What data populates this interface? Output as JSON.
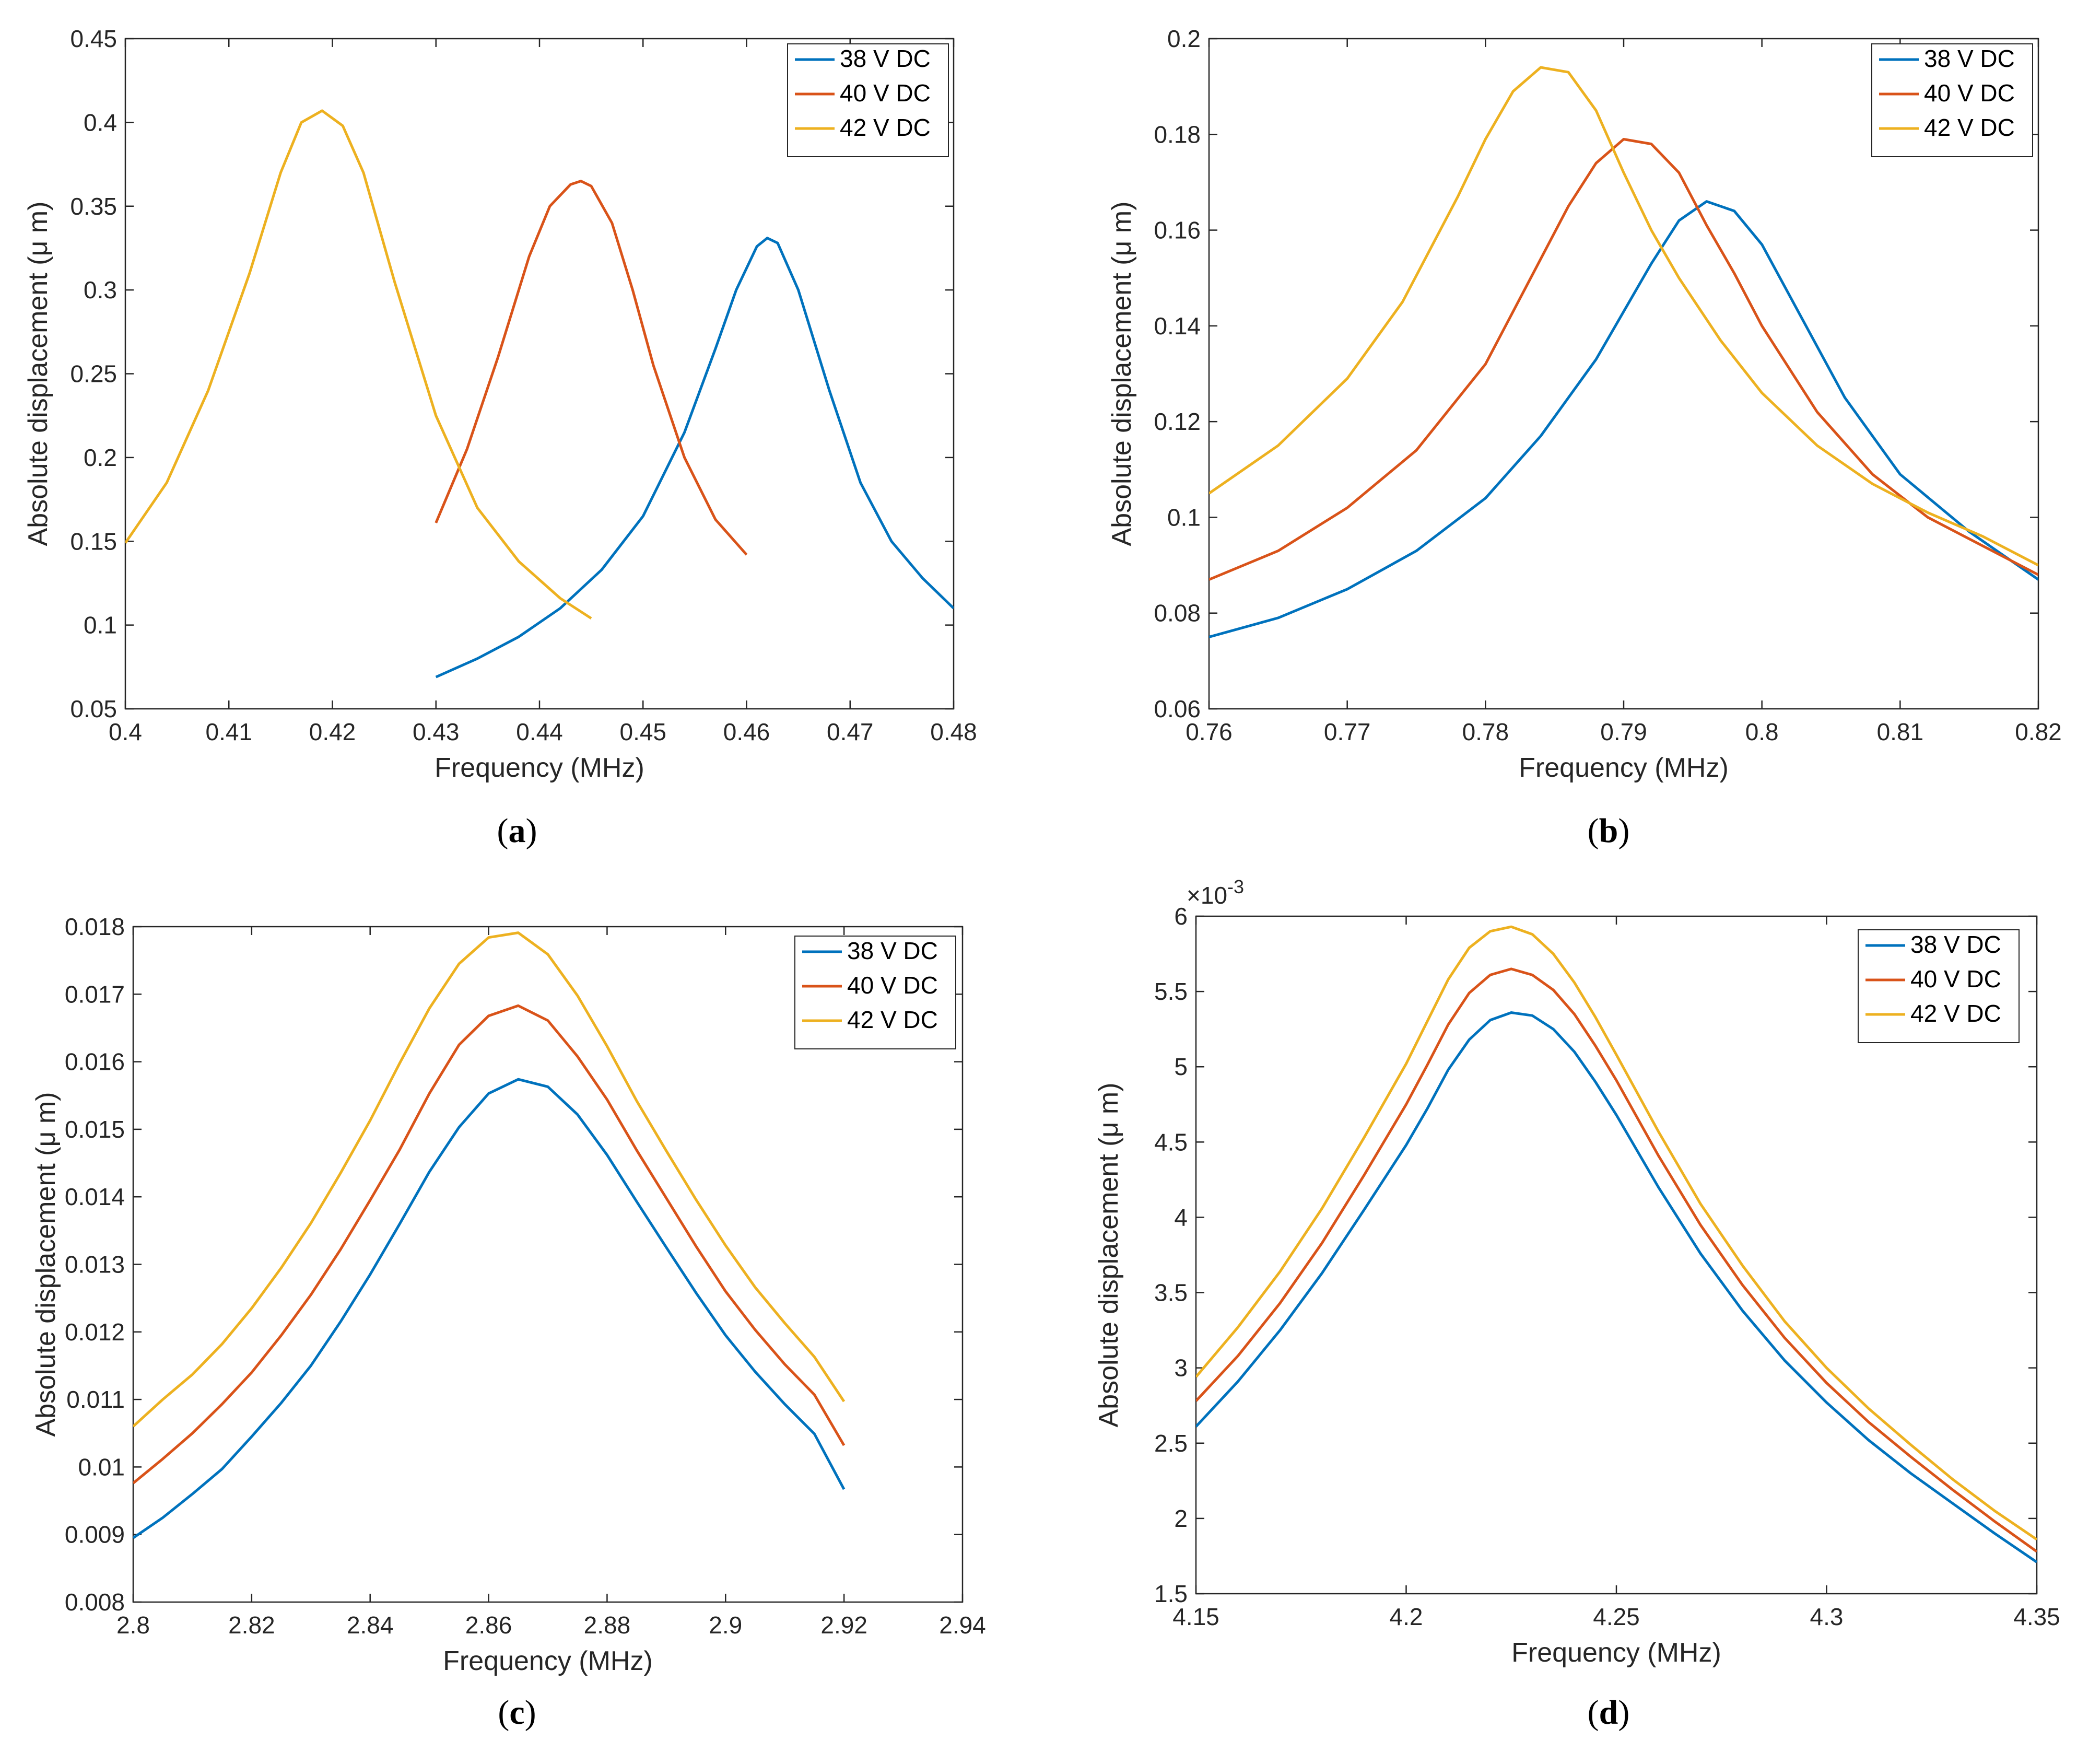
{
  "colors": {
    "s38": "#0072BD",
    "s40": "#D95319",
    "s42": "#EDB120",
    "axis": "#262626"
  },
  "chart_data": [
    {
      "type": "line",
      "caption": "a",
      "xlabel": "Frequency (MHz)",
      "ylabel": "Absolute displacement (μ m)",
      "exponent": "",
      "xlim": [
        0.4,
        0.48
      ],
      "ylim": [
        0.05,
        0.45
      ],
      "xticks": [
        "0.4",
        "0.41",
        "0.42",
        "0.43",
        "0.44",
        "0.45",
        "0.46",
        "0.47",
        "0.48"
      ],
      "yticks": [
        "0.05",
        "0.1",
        "0.15",
        "0.2",
        "0.25",
        "0.3",
        "0.35",
        "0.4",
        "0.45"
      ],
      "legend": [
        "38 V DC",
        "40 V DC",
        "42 V DC"
      ],
      "series": [
        {
          "name": "38 V DC",
          "x": [
            0.43,
            0.434,
            0.438,
            0.442,
            0.446,
            0.45,
            0.454,
            0.457,
            0.459,
            0.461,
            0.462,
            0.463,
            0.465,
            0.468,
            0.471,
            0.474,
            0.477,
            0.48
          ],
          "y": [
            0.069,
            0.08,
            0.093,
            0.11,
            0.133,
            0.165,
            0.215,
            0.265,
            0.3,
            0.326,
            0.331,
            0.328,
            0.3,
            0.24,
            0.185,
            0.15,
            0.128,
            0.11
          ]
        },
        {
          "name": "40 V DC",
          "x": [
            0.43,
            0.433,
            0.436,
            0.439,
            0.441,
            0.443,
            0.444,
            0.445,
            0.447,
            0.449,
            0.451,
            0.454,
            0.457,
            0.46
          ],
          "y": [
            0.161,
            0.205,
            0.26,
            0.32,
            0.35,
            0.363,
            0.365,
            0.362,
            0.34,
            0.3,
            0.255,
            0.2,
            0.163,
            0.142
          ]
        },
        {
          "name": "42 V DC",
          "x": [
            0.4,
            0.404,
            0.408,
            0.412,
            0.415,
            0.417,
            0.419,
            0.421,
            0.423,
            0.426,
            0.43,
            0.434,
            0.438,
            0.442,
            0.445
          ],
          "y": [
            0.149,
            0.185,
            0.24,
            0.31,
            0.37,
            0.4,
            0.407,
            0.398,
            0.37,
            0.305,
            0.225,
            0.17,
            0.138,
            0.116,
            0.104
          ]
        }
      ]
    },
    {
      "type": "line",
      "caption": "b",
      "xlabel": "Frequency (MHz)",
      "ylabel": "Absolute displacement (μ m)",
      "exponent": "",
      "xlim": [
        0.76,
        0.82
      ],
      "ylim": [
        0.06,
        0.2
      ],
      "xticks": [
        "0.76",
        "0.77",
        "0.78",
        "0.79",
        "0.8",
        "0.81",
        "0.82"
      ],
      "yticks": [
        "0.06",
        "0.08",
        "0.1",
        "0.12",
        "0.14",
        "0.16",
        "0.18",
        "0.2"
      ],
      "legend": [
        "38 V DC",
        "40 V DC",
        "42 V DC"
      ],
      "series": [
        {
          "name": "38 V DC",
          "x": [
            0.76,
            0.765,
            0.77,
            0.775,
            0.78,
            0.784,
            0.788,
            0.792,
            0.794,
            0.796,
            0.798,
            0.8,
            0.803,
            0.806,
            0.81,
            0.815,
            0.82
          ],
          "y": [
            0.075,
            0.079,
            0.085,
            0.093,
            0.104,
            0.117,
            0.133,
            0.153,
            0.162,
            0.166,
            0.164,
            0.157,
            0.141,
            0.125,
            0.109,
            0.097,
            0.087
          ]
        },
        {
          "name": "40 V DC",
          "x": [
            0.76,
            0.765,
            0.77,
            0.775,
            0.78,
            0.784,
            0.786,
            0.788,
            0.79,
            0.792,
            0.794,
            0.796,
            0.798,
            0.8,
            0.804,
            0.808,
            0.812,
            0.816,
            0.82
          ],
          "y": [
            0.087,
            0.093,
            0.102,
            0.114,
            0.132,
            0.154,
            0.165,
            0.174,
            0.179,
            0.178,
            0.172,
            0.161,
            0.151,
            0.14,
            0.122,
            0.109,
            0.1,
            0.094,
            0.088
          ]
        },
        {
          "name": "42 V DC",
          "x": [
            0.76,
            0.765,
            0.77,
            0.774,
            0.778,
            0.78,
            0.782,
            0.784,
            0.786,
            0.788,
            0.79,
            0.792,
            0.794,
            0.797,
            0.8,
            0.804,
            0.808,
            0.812,
            0.816,
            0.82
          ],
          "y": [
            0.105,
            0.115,
            0.129,
            0.145,
            0.167,
            0.179,
            0.189,
            0.194,
            0.193,
            0.185,
            0.172,
            0.16,
            0.15,
            0.137,
            0.126,
            0.115,
            0.107,
            0.101,
            0.096,
            0.09
          ]
        }
      ]
    },
    {
      "type": "line",
      "caption": "c",
      "xlabel": "Frequency (MHz)",
      "ylabel": "Absolute displacement (μ m)",
      "exponent": "",
      "xlim": [
        2.8,
        2.94
      ],
      "ylim": [
        0.008,
        0.018
      ],
      "xticks": [
        "2.8",
        "2.82",
        "2.84",
        "2.86",
        "2.88",
        "2.9",
        "2.92",
        "2.94"
      ],
      "yticks": [
        "0.008",
        "0.009",
        "0.01",
        "0.011",
        "0.012",
        "0.013",
        "0.014",
        "0.015",
        "0.016",
        "0.017",
        "0.018"
      ],
      "legend": [
        "38 V DC",
        "40 V DC",
        "42 V DC"
      ],
      "series": [
        {
          "name": "38 V DC",
          "x": [
            2.8,
            2.805,
            2.81,
            2.815,
            2.82,
            2.825,
            2.83,
            2.835,
            2.84,
            2.845,
            2.85,
            2.855,
            2.86,
            2.865,
            2.87,
            2.875,
            2.88,
            2.885,
            2.89,
            2.895,
            2.9,
            2.905,
            2.91,
            2.915,
            2.92
          ],
          "y": [
            0.00895,
            0.00925,
            0.0096,
            0.00997,
            0.01045,
            0.01095,
            0.0115,
            0.01215,
            0.01285,
            0.0136,
            0.01437,
            0.01503,
            0.01553,
            0.01574,
            0.01563,
            0.01522,
            0.01462,
            0.01393,
            0.01325,
            0.01258,
            0.01195,
            0.01141,
            0.01093,
            0.01049,
            0.00967
          ]
        },
        {
          "name": "40 V DC",
          "x": [
            2.8,
            2.805,
            2.81,
            2.815,
            2.82,
            2.825,
            2.83,
            2.835,
            2.84,
            2.845,
            2.85,
            2.855,
            2.86,
            2.865,
            2.87,
            2.875,
            2.88,
            2.885,
            2.89,
            2.895,
            2.9,
            2.905,
            2.91,
            2.915,
            2.92
          ],
          "y": [
            0.00976,
            0.01012,
            0.0105,
            0.01093,
            0.0114,
            0.01195,
            0.01255,
            0.01322,
            0.01395,
            0.0147,
            0.01553,
            0.01625,
            0.01668,
            0.01683,
            0.01661,
            0.01608,
            0.01544,
            0.01469,
            0.01398,
            0.01327,
            0.0126,
            0.01203,
            0.01152,
            0.01107,
            0.01032
          ]
        },
        {
          "name": "42 V DC",
          "x": [
            2.8,
            2.805,
            2.81,
            2.815,
            2.82,
            2.825,
            2.83,
            2.835,
            2.84,
            2.845,
            2.85,
            2.855,
            2.86,
            2.865,
            2.87,
            2.875,
            2.88,
            2.885,
            2.89,
            2.895,
            2.9,
            2.905,
            2.91,
            2.915,
            2.92
          ],
          "y": [
            0.0106,
            0.011,
            0.01137,
            0.01182,
            0.01235,
            0.01295,
            0.01361,
            0.01435,
            0.01513,
            0.01598,
            0.01679,
            0.01745,
            0.01784,
            0.01791,
            0.01759,
            0.01698,
            0.01623,
            0.01542,
            0.01468,
            0.01396,
            0.01328,
            0.01266,
            0.01213,
            0.01163,
            0.01097
          ]
        }
      ]
    },
    {
      "type": "line",
      "caption": "d",
      "xlabel": "Frequency (MHz)",
      "ylabel": "Absolute displacement (μ m)",
      "exponent": "×10",
      "exponent_power": "-3",
      "xlim": [
        4.15,
        4.35
      ],
      "ylim": [
        1.5,
        6
      ],
      "xticks": [
        "4.15",
        "4.2",
        "4.25",
        "4.3",
        "4.35"
      ],
      "yticks": [
        "1.5",
        "2",
        "2.5",
        "3",
        "3.5",
        "4",
        "4.5",
        "5",
        "5.5",
        "6"
      ],
      "legend": [
        "38 V DC",
        "40 V DC",
        "42 V DC"
      ],
      "series": [
        {
          "name": "38 V DC",
          "x": [
            4.15,
            4.16,
            4.17,
            4.18,
            4.19,
            4.2,
            4.205,
            4.21,
            4.215,
            4.22,
            4.225,
            4.23,
            4.235,
            4.24,
            4.245,
            4.25,
            4.26,
            4.27,
            4.28,
            4.29,
            4.3,
            4.31,
            4.32,
            4.33,
            4.34,
            4.35
          ],
          "y": [
            2.61,
            2.91,
            3.25,
            3.63,
            4.05,
            4.48,
            4.72,
            4.98,
            5.18,
            5.31,
            5.36,
            5.34,
            5.25,
            5.1,
            4.9,
            4.68,
            4.2,
            3.76,
            3.38,
            3.05,
            2.77,
            2.52,
            2.3,
            2.1,
            1.9,
            1.71
          ]
        },
        {
          "name": "40 V DC",
          "x": [
            4.15,
            4.16,
            4.17,
            4.18,
            4.19,
            4.2,
            4.205,
            4.21,
            4.215,
            4.22,
            4.225,
            4.23,
            4.235,
            4.24,
            4.245,
            4.25,
            4.26,
            4.27,
            4.28,
            4.29,
            4.3,
            4.31,
            4.32,
            4.33,
            4.34,
            4.35
          ],
          "y": [
            2.78,
            3.08,
            3.43,
            3.83,
            4.28,
            4.75,
            5.01,
            5.28,
            5.49,
            5.61,
            5.65,
            5.61,
            5.51,
            5.35,
            5.14,
            4.91,
            4.41,
            3.95,
            3.55,
            3.2,
            2.9,
            2.64,
            2.41,
            2.19,
            1.98,
            1.78
          ]
        },
        {
          "name": "42 V DC",
          "x": [
            4.15,
            4.16,
            4.17,
            4.18,
            4.19,
            4.2,
            4.205,
            4.21,
            4.215,
            4.22,
            4.225,
            4.23,
            4.235,
            4.24,
            4.245,
            4.25,
            4.26,
            4.27,
            4.28,
            4.29,
            4.3,
            4.31,
            4.32,
            4.33,
            4.34,
            4.35
          ],
          "y": [
            2.94,
            3.27,
            3.64,
            4.06,
            4.53,
            5.02,
            5.3,
            5.58,
            5.79,
            5.9,
            5.93,
            5.88,
            5.75,
            5.56,
            5.33,
            5.08,
            4.57,
            4.09,
            3.68,
            3.31,
            3.0,
            2.73,
            2.49,
            2.26,
            2.05,
            1.86
          ]
        }
      ]
    }
  ]
}
